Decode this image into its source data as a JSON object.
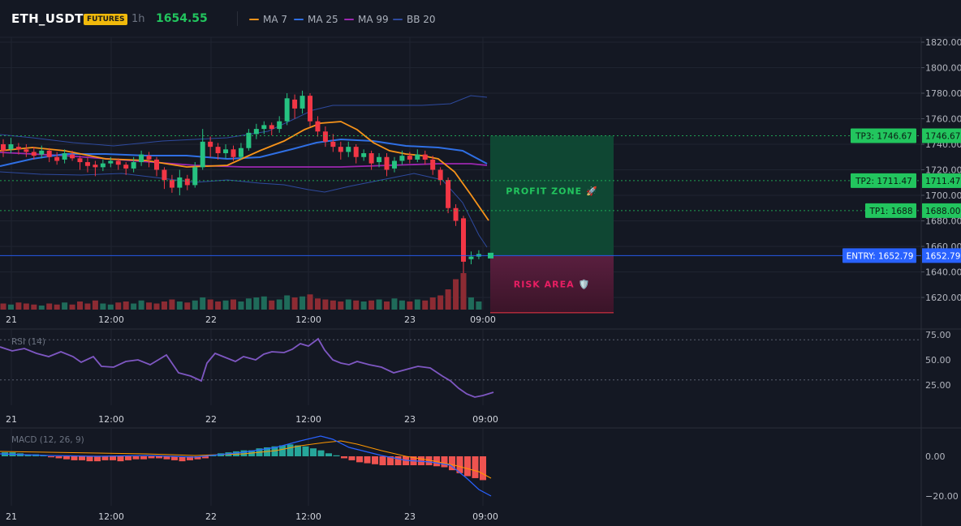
{
  "header": {
    "symbol": "ETH_USDT",
    "badge": "FUTURES",
    "timeframe": "1h",
    "last_price": "1654.55",
    "indicators": [
      {
        "label": "MA 7",
        "color": "#f7931a"
      },
      {
        "label": "MA 25",
        "color": "#2f6fe4"
      },
      {
        "label": "MA 99",
        "color": "#9c27b0"
      },
      {
        "label": "BB 20",
        "color": "#2e4a9e"
      }
    ]
  },
  "price_axis": {
    "ticks": [
      "1820.00",
      "1800.00",
      "1780.00",
      "1760.00",
      "1740.00",
      "1720.00",
      "1700.00",
      "1680.00",
      "1660.00",
      "1640.00",
      "1620.00"
    ],
    "min": 1620,
    "max": 1820
  },
  "time_axis": {
    "labels": [
      "21",
      "12:00",
      "22",
      "12:00",
      "23",
      "09:00"
    ]
  },
  "levels": {
    "tp3": {
      "tag": "TP3: 1746.67",
      "value_label": "1746.67",
      "price": 1746.67
    },
    "tp2": {
      "tag": "TP2: 1711.47",
      "value_label": "1711.47",
      "price": 1711.47
    },
    "tp1": {
      "tag": "TP1: 1688",
      "value_label": "1688.00",
      "price": 1688.0
    },
    "entry": {
      "tag": "ENTRY: 1652.79",
      "value_label": "1652.79",
      "price": 1652.79
    }
  },
  "zones": {
    "profit": "PROFIT ZONE 🚀",
    "risk": "RISK AREA 🛡️",
    "stop_price": 1608
  },
  "rsi": {
    "label": "RSI (14)",
    "ticks": [
      "75.00",
      "50.00",
      "25.00"
    ],
    "overbought": 70,
    "oversold": 30,
    "min": 10,
    "max": 80
  },
  "macd": {
    "label": "MACD (12, 26, 9)",
    "ticks": [
      "0.00",
      "−20.00"
    ],
    "min": -25,
    "max": 15
  },
  "colors": {
    "up": "#26c281",
    "down": "#f23645",
    "vol_up": "#1f6b5a",
    "vol_down": "#8c2b33",
    "grid": "#1f2430",
    "axis_text": "#b2b5be",
    "tp_green": "#22c55e",
    "entry_blue": "#2962ff",
    "rsi_line": "#7e57c2",
    "macd_line": "#2962ff",
    "signal_line": "#ff9800",
    "hist_up": "#26a69a",
    "hist_down": "#ef5350"
  }
}
